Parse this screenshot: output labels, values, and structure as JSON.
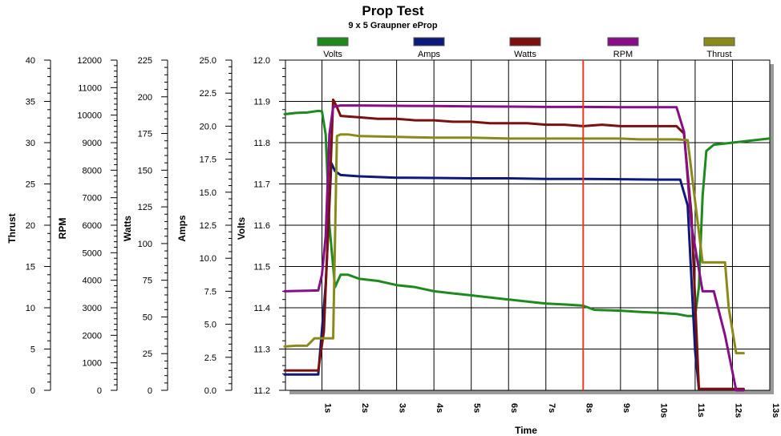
{
  "chart_data": {
    "type": "line",
    "title": "Prop Test",
    "subtitle": "9 x 5 Graupner eProp",
    "xlabel": "Time",
    "x_unit": "s",
    "xlim": [
      0,
      13
    ],
    "x_ticks": [
      1,
      2,
      3,
      4,
      5,
      6,
      7,
      8,
      9,
      10,
      11,
      12,
      13
    ],
    "x_tick_labels": [
      "1s",
      "2s",
      "3s",
      "4s",
      "5s",
      "6s",
      "7s",
      "8s",
      "9s",
      "10s",
      "11s",
      "12s",
      "13s"
    ],
    "grid": true,
    "legend_position": "top",
    "marker_line": {
      "x": 8.0,
      "color": "#e83a1c"
    },
    "axes": [
      {
        "key": "thrust",
        "label": "Thrust",
        "min": 0,
        "max": 40,
        "major_step": 5,
        "tick_labels": [
          "0",
          "5",
          "10",
          "15",
          "20",
          "25",
          "30",
          "35",
          "40"
        ]
      },
      {
        "key": "rpm",
        "label": "RPM",
        "min": 0,
        "max": 12000,
        "major_step": 1000,
        "tick_labels": [
          "0",
          "1000",
          "2000",
          "3000",
          "4000",
          "5000",
          "6000",
          "7000",
          "8000",
          "9000",
          "10000",
          "11000",
          "12000"
        ]
      },
      {
        "key": "watts",
        "label": "Watts",
        "min": 0,
        "max": 225,
        "major_step": 25,
        "tick_labels": [
          "0",
          "25",
          "50",
          "75",
          "100",
          "125",
          "150",
          "175",
          "200",
          "225"
        ]
      },
      {
        "key": "amps",
        "label": "Amps",
        "min": 0,
        "max": 25,
        "major_step": 2.5,
        "tick_labels": [
          "0.0",
          "2.5",
          "5.0",
          "7.5",
          "10.0",
          "12.5",
          "15.0",
          "17.5",
          "20.0",
          "22.5",
          "25.0"
        ]
      },
      {
        "key": "volts",
        "label": "Volts",
        "min": 11.2,
        "max": 12.0,
        "major_step": 0.1,
        "tick_labels": [
          "11.2",
          "11.3",
          "11.4",
          "11.5",
          "11.6",
          "11.7",
          "11.8",
          "11.9",
          "12.0"
        ]
      }
    ],
    "series": [
      {
        "name": "Volts",
        "axis": "volts",
        "color": "#1e8a1e",
        "points": [
          [
            0,
            11.869
          ],
          [
            0.3,
            11.872
          ],
          [
            0.6,
            11.873
          ],
          [
            0.9,
            11.877
          ],
          [
            1.0,
            11.876
          ],
          [
            1.1,
            11.82
          ],
          [
            1.2,
            11.6
          ],
          [
            1.35,
            11.45
          ],
          [
            1.5,
            11.48
          ],
          [
            1.7,
            11.48
          ],
          [
            2.0,
            11.47
          ],
          [
            2.5,
            11.465
          ],
          [
            3.0,
            11.455
          ],
          [
            3.5,
            11.45
          ],
          [
            4.0,
            11.44
          ],
          [
            4.5,
            11.435
          ],
          [
            5.0,
            11.43
          ],
          [
            5.5,
            11.425
          ],
          [
            6.0,
            11.42
          ],
          [
            6.5,
            11.415
          ],
          [
            7.0,
            11.41
          ],
          [
            7.5,
            11.408
          ],
          [
            8.0,
            11.405
          ],
          [
            8.3,
            11.395
          ],
          [
            9.0,
            11.393
          ],
          [
            9.5,
            11.39
          ],
          [
            10.0,
            11.388
          ],
          [
            10.5,
            11.385
          ],
          [
            10.8,
            11.38
          ],
          [
            11.0,
            11.38
          ],
          [
            11.1,
            11.45
          ],
          [
            11.2,
            11.67
          ],
          [
            11.3,
            11.78
          ],
          [
            11.5,
            11.795
          ],
          [
            12.0,
            11.8
          ],
          [
            12.5,
            11.805
          ],
          [
            13.0,
            11.81
          ]
        ]
      },
      {
        "name": "Amps",
        "axis": "amps",
        "color": "#0d1a7a",
        "points": [
          [
            0,
            1.2
          ],
          [
            0.9,
            1.2
          ],
          [
            1.1,
            8.0
          ],
          [
            1.25,
            17.2
          ],
          [
            1.35,
            16.6
          ],
          [
            1.5,
            16.3
          ],
          [
            2.0,
            16.2
          ],
          [
            3.0,
            16.1
          ],
          [
            4.0,
            16.08
          ],
          [
            5.0,
            16.05
          ],
          [
            6.0,
            16.05
          ],
          [
            7.0,
            16.0
          ],
          [
            8.0,
            16.0
          ],
          [
            9.0,
            15.98
          ],
          [
            10.0,
            15.95
          ],
          [
            10.6,
            15.95
          ],
          [
            10.8,
            14.0
          ],
          [
            11.0,
            3.0
          ],
          [
            11.1,
            0.1
          ],
          [
            12.0,
            0.1
          ],
          [
            12.3,
            0.05
          ]
        ]
      },
      {
        "name": "Watts",
        "axis": "watts",
        "color": "#7a1010",
        "points": [
          [
            0,
            13.5
          ],
          [
            0.9,
            13.5
          ],
          [
            1.05,
            40
          ],
          [
            1.2,
            130
          ],
          [
            1.3,
            198
          ],
          [
            1.4,
            193
          ],
          [
            1.5,
            187
          ],
          [
            2.0,
            186
          ],
          [
            2.5,
            185
          ],
          [
            3.0,
            185
          ],
          [
            3.5,
            184
          ],
          [
            4.0,
            184
          ],
          [
            4.5,
            183
          ],
          [
            5.0,
            183
          ],
          [
            5.5,
            182
          ],
          [
            6.0,
            182
          ],
          [
            6.5,
            182
          ],
          [
            7.0,
            181
          ],
          [
            7.5,
            181
          ],
          [
            8.0,
            180
          ],
          [
            8.5,
            181
          ],
          [
            9.0,
            180
          ],
          [
            9.5,
            180
          ],
          [
            10.0,
            180
          ],
          [
            10.5,
            180
          ],
          [
            10.7,
            175
          ],
          [
            10.9,
            120
          ],
          [
            11.1,
            1.0
          ],
          [
            12.3,
            1.0
          ]
        ]
      },
      {
        "name": "RPM",
        "axis": "rpm",
        "color": "#880e88",
        "points": [
          [
            0,
            3600
          ],
          [
            0.6,
            3620
          ],
          [
            0.9,
            3630
          ],
          [
            1.0,
            4200
          ],
          [
            1.1,
            5600
          ],
          [
            1.2,
            9300
          ],
          [
            1.3,
            10300
          ],
          [
            1.5,
            10350
          ],
          [
            2.0,
            10350
          ],
          [
            3.0,
            10340
          ],
          [
            4.0,
            10330
          ],
          [
            5.0,
            10320
          ],
          [
            6.0,
            10310
          ],
          [
            7.0,
            10300
          ],
          [
            8.0,
            10300
          ],
          [
            9.0,
            10290
          ],
          [
            10.0,
            10290
          ],
          [
            10.5,
            10290
          ],
          [
            10.7,
            9400
          ],
          [
            10.9,
            6000
          ],
          [
            11.2,
            3600
          ],
          [
            11.5,
            3600
          ],
          [
            11.8,
            2000
          ],
          [
            12.1,
            0
          ],
          [
            12.3,
            0
          ]
        ]
      },
      {
        "name": "Thrust",
        "axis": "thrust",
        "color": "#8a8a1a",
        "points": [
          [
            0,
            5.3
          ],
          [
            0.3,
            5.4
          ],
          [
            0.6,
            5.4
          ],
          [
            0.8,
            6.3
          ],
          [
            1.0,
            6.3
          ],
          [
            1.3,
            6.3
          ],
          [
            1.4,
            30.8
          ],
          [
            1.5,
            31.0
          ],
          [
            1.7,
            31.0
          ],
          [
            2.0,
            30.8
          ],
          [
            3.0,
            30.7
          ],
          [
            4.0,
            30.6
          ],
          [
            5.0,
            30.6
          ],
          [
            6.0,
            30.5
          ],
          [
            7.0,
            30.5
          ],
          [
            8.0,
            30.5
          ],
          [
            9.0,
            30.5
          ],
          [
            9.5,
            30.4
          ],
          [
            10.5,
            30.4
          ],
          [
            10.8,
            30.3
          ],
          [
            11.2,
            15.5
          ],
          [
            11.6,
            15.5
          ],
          [
            11.8,
            15.5
          ],
          [
            11.9,
            10.0
          ],
          [
            12.1,
            4.5
          ],
          [
            12.3,
            4.5
          ]
        ]
      }
    ]
  }
}
